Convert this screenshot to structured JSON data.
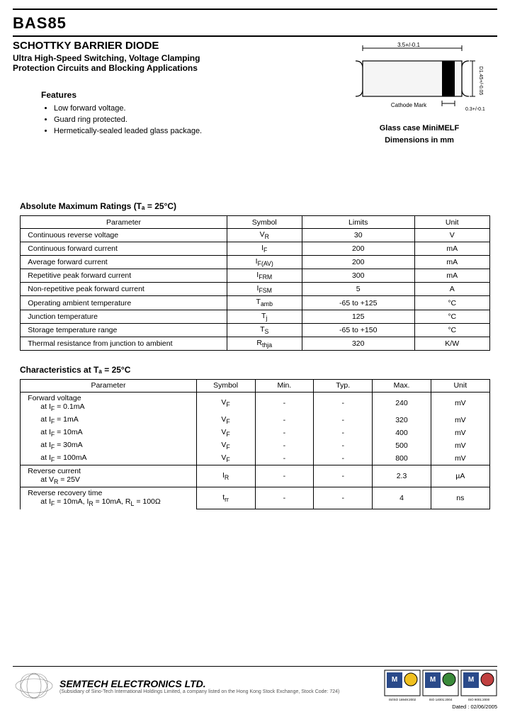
{
  "header": {
    "part_number": "BAS85",
    "title1": "SCHOTTKY BARRIER DIODE",
    "title2": "Ultra High-Speed Switching, Voltage Clamping",
    "title3": "Protection Circuits and Blocking Applications",
    "features_heading": "Features",
    "features": [
      "Low forward voltage.",
      "Guard ring protected.",
      "Hermetically-sealed leaded glass package."
    ]
  },
  "package": {
    "dim_width": "3.5+/-0.1",
    "dim_height": "D1.45+/-0.05",
    "dim_band": "0.3+/-0.1",
    "cathode_label": "Cathode Mark",
    "caption1": "Glass case MiniMELF",
    "caption2": "Dimensions in mm",
    "body_fill": "#f5f5f5",
    "band_fill": "#000000",
    "stroke": "#000000"
  },
  "abs_max": {
    "title": "Absolute Maximum Ratings (Tₐ = 25°C)",
    "headers": [
      "Parameter",
      "Symbol",
      "Limits",
      "Unit"
    ],
    "rows": [
      [
        "Continuous reverse voltage",
        "V_R",
        "30",
        "V"
      ],
      [
        "Continuous forward current",
        "I_F",
        "200",
        "mA"
      ],
      [
        "Average forward current",
        "I_F(AV)",
        "200",
        "mA"
      ],
      [
        "Repetitive peak forward current",
        "I_FRM",
        "300",
        "mA"
      ],
      [
        "Non-repetitive peak forward current",
        "I_FSM",
        "5",
        "A"
      ],
      [
        "Operating ambient temperature",
        "T_amb",
        "-65 to +125",
        "°C"
      ],
      [
        "Junction temperature",
        "T_j",
        "125",
        "°C"
      ],
      [
        "Storage temperature range",
        "T_S",
        "-65 to +150",
        "°C"
      ],
      [
        "Thermal resistance from junction to ambient",
        "R_thja",
        "320",
        "K/W"
      ]
    ]
  },
  "char": {
    "title": "Characteristics at Tₐ = 25°C",
    "headers": [
      "Parameter",
      "Symbol",
      "Min.",
      "Typ.",
      "Max.",
      "Unit"
    ],
    "groups": [
      {
        "heading": "Forward voltage",
        "lines": [
          [
            "at I_F = 0.1mA",
            "V_F",
            "-",
            "-",
            "240",
            "mV"
          ],
          [
            "at I_F = 1mA",
            "V_F",
            "-",
            "-",
            "320",
            "mV"
          ],
          [
            "at I_F = 10mA",
            "V_F",
            "-",
            "-",
            "400",
            "mV"
          ],
          [
            "at I_F = 30mA",
            "V_F",
            "-",
            "-",
            "500",
            "mV"
          ],
          [
            "at I_F = 100mA",
            "V_F",
            "-",
            "-",
            "800",
            "mV"
          ]
        ]
      },
      {
        "heading": "Reverse current",
        "lines": [
          [
            "at V_R = 25V",
            "I_R",
            "-",
            "-",
            "2.3",
            "µA"
          ]
        ]
      },
      {
        "heading": "Reverse recovery time",
        "lines": [
          [
            "at I_F = 10mA, I_R = 10mA, R_L = 100Ω",
            "t_rr",
            "-",
            "-",
            "4",
            "ns"
          ]
        ]
      }
    ]
  },
  "footer": {
    "company": "SEMTECH ELECTRONICS LTD.",
    "subsidiary": "(Subsidiary of Sino-Tech International Holdings Limited, a company listed on the Hong Kong Stock Exchange, Stock Code: 724)",
    "certs": [
      "IS/ISO 16949:2002",
      "ISO 14001:2004",
      "ISO 9001:2000"
    ],
    "dated": "Dated : 02/06/2005"
  },
  "colors": {
    "text": "#000000",
    "border": "#000000",
    "cert_bg": "#e8e8e8"
  }
}
